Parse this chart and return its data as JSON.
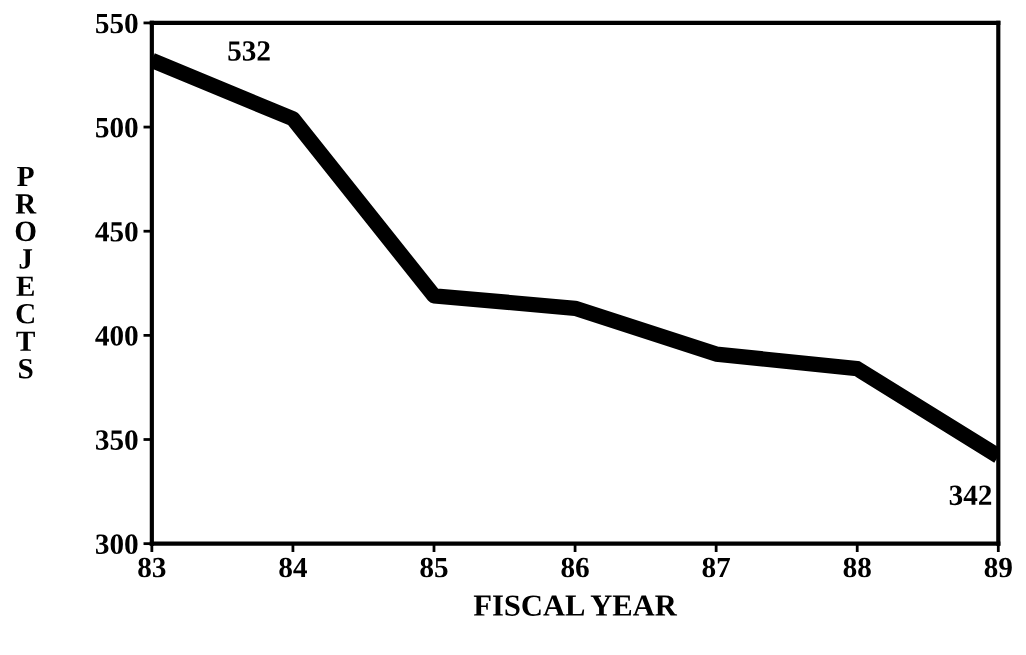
{
  "chart_data": {
    "type": "line",
    "xlabel": "FISCAL YEAR",
    "ylabel": "PROJECTS",
    "x": [
      83,
      84,
      85,
      86,
      87,
      88,
      89
    ],
    "series": [
      {
        "color": "#000000",
        "values": [
          532,
          504,
          419,
          413,
          391,
          384,
          342
        ]
      }
    ],
    "xlim": [
      83,
      89
    ],
    "xticks": [
      83,
      84,
      85,
      86,
      87,
      88,
      89
    ],
    "ylim": [
      300,
      550
    ],
    "yticks": [
      300,
      350,
      400,
      450,
      500,
      550
    ],
    "annotations": [
      {
        "text": "532",
        "x": 83,
        "y": 532
      },
      {
        "text": "342",
        "x": 89,
        "y": 342
      }
    ],
    "grid": false,
    "legend": false,
    "marker": "none",
    "line_style": "solid"
  }
}
